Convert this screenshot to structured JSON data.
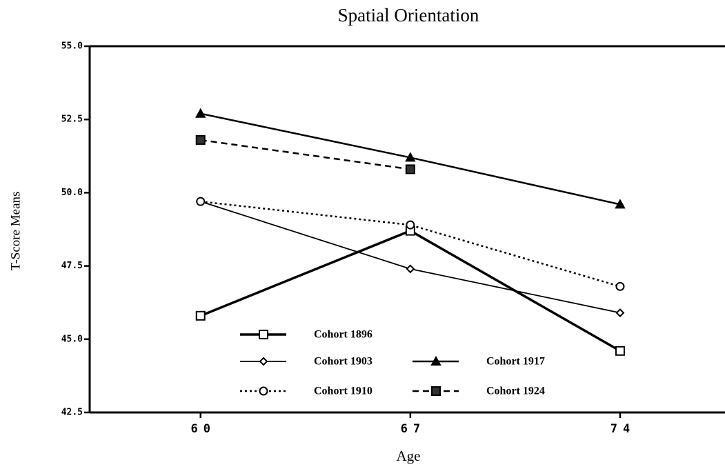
{
  "chart_data": {
    "type": "line",
    "title": "Spatial Orientation",
    "xlabel": "Age",
    "ylabel": "T-Score Means",
    "x": [
      60,
      67,
      74
    ],
    "xlim": [
      56.3,
      77.5
    ],
    "xticks": [
      60,
      67,
      74
    ],
    "ylim": [
      42.5,
      55
    ],
    "yticks": [
      {
        "value": 55,
        "label": "55.0"
      },
      52.5,
      {
        "value": 50,
        "label": "50.0"
      },
      47.5,
      {
        "value": 45,
        "label": "45.0"
      },
      42.5
    ],
    "series": [
      {
        "name": "Cohort 1896",
        "color": "#000000",
        "dash": "solid",
        "width": 3.5,
        "marker": "square",
        "values": [
          45.8,
          48.7,
          44.6
        ]
      },
      {
        "name": "Cohort 1903",
        "color": "#000000",
        "dash": "solid",
        "width": 1.8,
        "marker": "diamond",
        "values": [
          49.7,
          47.4,
          45.9
        ]
      },
      {
        "name": "Cohort 1910",
        "color": "#000000",
        "dash": "dotted",
        "width": 2.5,
        "marker": "circle",
        "values": [
          49.7,
          48.9,
          46.8
        ]
      },
      {
        "name": "Cohort 1917",
        "color": "#000000",
        "dash": "solid",
        "width": 2.5,
        "marker": "triangle",
        "values": [
          52.7,
          51.2,
          49.6
        ]
      },
      {
        "name": "Cohort 1924",
        "color": "#000000",
        "dash": "dashed",
        "width": 2.5,
        "marker": "filled-square",
        "values": [
          51.8,
          50.8,
          null
        ]
      }
    ]
  }
}
